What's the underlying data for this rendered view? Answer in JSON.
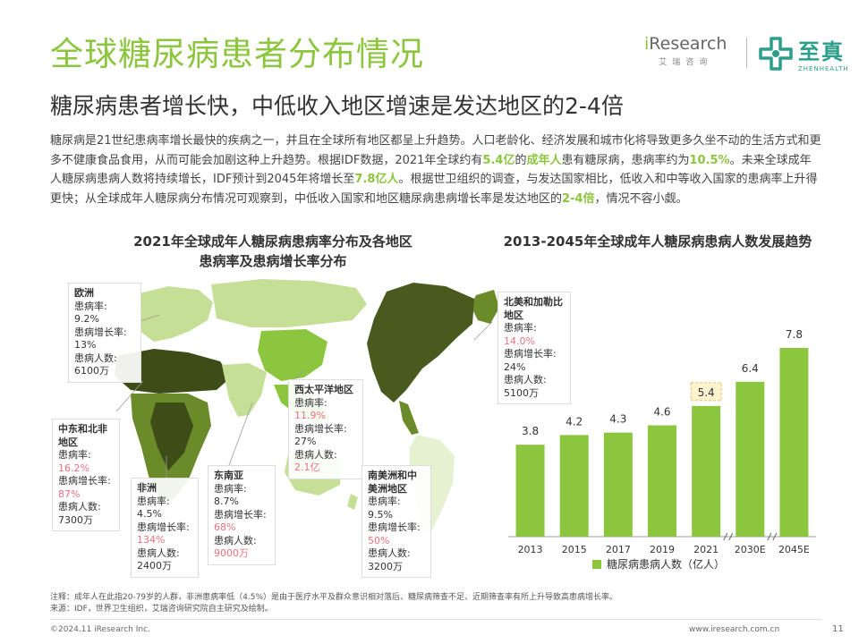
{
  "header": {
    "title": "全球糖尿病患者分布情况",
    "subtitle": "糖尿病患者增长快，中低收入地区增速是发达地区的2-4倍",
    "logo_ir_prefix": "i",
    "logo_ir_brand": "Research",
    "logo_ir_sub": "艾瑞咨询",
    "logo_zz_cn": "至真",
    "logo_zz_en": "ZHENHEALTH"
  },
  "body": {
    "p1": "糖尿病是21世纪患病率增长最快的疾病之一，并且在全球所有地区都呈上升趋势。人口老龄化、经济发展和城市化将导致更多久坐不动的生活方式和更多不健康食品食用，从而可能会加剧这种上升趋势。根据IDF数据，2021年全球约有",
    "h1": "5.4亿",
    "p2": "的",
    "h2": "成年人",
    "p3": "患有糖尿病，患病率约为",
    "h3": "10.5%",
    "p4": "。未来全球成年人糖尿病患病人数将持续增长，IDF预计到2045年将增长至",
    "h4": "7.8亿人",
    "p5": "。根据世卫组织的调查，与发达国家相比，低收入和中等收入国家的患病率上升得更快；从全球成年人糖尿病分布情况可观察到，中低收入国家和地区糖尿病患病增长率是发达地区的",
    "h5": "2-4倍",
    "p6": "，情况不容小觑。"
  },
  "left_chart": {
    "title_line1": "2021年全球成年人糖尿病患病率分布及各地区",
    "title_line2": "患病率及患病增长率分布"
  },
  "regions": {
    "europe": {
      "name": "欧洲",
      "l1": "患病率:",
      "v1": "9.2%",
      "l2": "患病增长率:",
      "v2": "13%",
      "l3": "患病人数:",
      "v3": "6100万"
    },
    "mena": {
      "name": "中东和北非地区",
      "l1": "患病率:",
      "v1": "16.2%",
      "l2": "患病增长率:",
      "v2": "87%",
      "l3": "患病人数:",
      "v3": "7300万"
    },
    "africa": {
      "name": "非洲",
      "l1": "患病率:",
      "v1": "4.5%",
      "l2": "患病增长率:",
      "v2": "134%",
      "l3": "患病人数:",
      "v3": "2400万"
    },
    "sea": {
      "name": "东南亚",
      "l1": "患病率:",
      "v1": "8.7%",
      "l2": "患病增长率:",
      "v2": "68%",
      "l3": "患病人数:",
      "v3": "9000万"
    },
    "wp": {
      "name": "西太平洋地区",
      "l1": "患病率:",
      "v1": "11.9%",
      "l2": "患病增长率:",
      "v2": "27%",
      "l3": "患病人数:",
      "v3": "2.1亿"
    },
    "nac": {
      "name": "北美和加勒比地区",
      "l1": "患病率:",
      "v1": "14.0%",
      "l2": "患病增长率:",
      "v2": "24%",
      "l3": "患病人数:",
      "v3": "5100万"
    },
    "sacam": {
      "name": "南美洲和中美洲地区",
      "l1": "患病率:",
      "v1": "9.5%",
      "l2": "患病增长率:",
      "v2": "50%",
      "l3": "患病人数:",
      "v3": "3200万"
    }
  },
  "colors": {
    "accent": "#8cc63f",
    "bar": "#8cc63f",
    "highlight": "#e8727f",
    "dark_green": "#4a5a1e",
    "mid_green": "#7ea03a",
    "light_green": "#c5df96",
    "pale_green": "#e6f1d2"
  },
  "chart_data": {
    "type": "bar",
    "title": "2013-2045年全球成年人糖尿病患病人数发展趋势",
    "categories": [
      "2013",
      "2015",
      "2017",
      "2019",
      "2021",
      "2030E",
      "2045E"
    ],
    "series": [
      {
        "name": "糖尿病患病人数（亿人）",
        "values": [
          3.8,
          4.2,
          4.3,
          4.6,
          5.4,
          6.4,
          7.8
        ]
      }
    ],
    "value_labels": [
      "3.8",
      "4.2",
      "4.3",
      "4.6",
      "5.4",
      "6.4",
      "7.8"
    ],
    "highlighted_category": "2021",
    "axis_breaks_after": [
      "2021",
      "2030E"
    ],
    "legend_position": "bottom",
    "ylim": [
      0,
      8.5
    ],
    "grid": false
  },
  "footer": {
    "note": "注释：成年人在此指20-79岁的人群，非洲患病率低（4.5%）是由于医疗水平及群众意识相对落后、糖尿病筛查不足、近期筛查率有所上升导致高患病增长率。",
    "source": "来源：IDF，世界卫生组织，艾瑞咨询研究院自主研究及绘制。",
    "copyright": "©2024.11 iResearch Inc.",
    "url": "www.iresearch.com.cn",
    "page": "11"
  }
}
